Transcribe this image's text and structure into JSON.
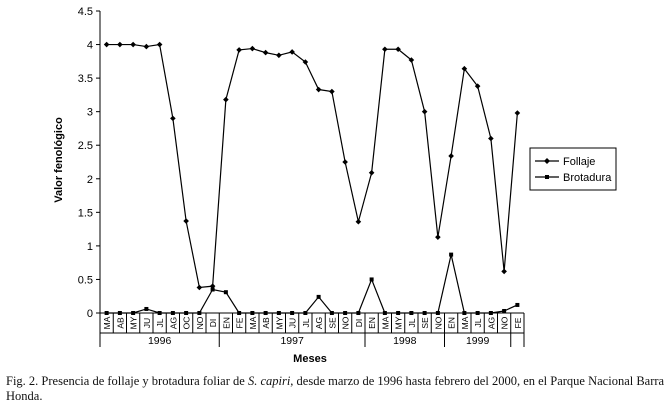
{
  "chart_data": {
    "type": "line",
    "ylabel": "Valor fenológico",
    "xlabel": "Meses",
    "ylim": [
      0,
      4.5
    ],
    "yticks": [
      "0",
      "0.5",
      "1",
      "1.5",
      "2",
      "2.5",
      "3",
      "3.5",
      "4",
      "4.5"
    ],
    "grid": false,
    "legend_position": "right",
    "categories": [
      "MA",
      "AB",
      "MY",
      "JU",
      "JL",
      "AG",
      "OC",
      "NO",
      "DI",
      "EN",
      "FE",
      "MA",
      "AB",
      "MY",
      "JU",
      "JL",
      "AG",
      "SE",
      "NO",
      "DI",
      "EN",
      "MA",
      "MY",
      "JL",
      "SE",
      "NO",
      "EN",
      "MA",
      "JL",
      "AG",
      "NO",
      "FE"
    ],
    "years": [
      {
        "label": "1996",
        "start": 0,
        "end": 8
      },
      {
        "label": "1997",
        "start": 9,
        "end": 19
      },
      {
        "label": "1998",
        "start": 20,
        "end": 25
      },
      {
        "label": "1999",
        "start": 26,
        "end": 30
      }
    ],
    "series": [
      {
        "name": "Follaje",
        "marker": "diamond",
        "values": [
          4.0,
          4.0,
          4.0,
          3.97,
          4.0,
          2.9,
          1.37,
          0.38,
          0.4,
          3.18,
          3.92,
          3.94,
          3.88,
          3.84,
          3.89,
          3.74,
          3.33,
          3.3,
          2.25,
          1.36,
          2.09,
          3.93,
          3.93,
          3.77,
          3.0,
          1.13,
          2.34,
          3.64,
          3.38,
          2.6,
          0.62,
          2.98
        ]
      },
      {
        "name": "Brotadura",
        "marker": "square",
        "values": [
          0,
          0,
          0,
          0.06,
          0,
          0,
          0,
          0,
          0.35,
          0.31,
          0,
          0,
          0,
          0,
          0,
          0,
          0.24,
          0,
          0,
          0,
          0.5,
          0,
          0,
          0,
          0,
          0,
          0.87,
          0,
          0,
          0,
          0.03,
          0.12
        ]
      }
    ]
  },
  "caption": {
    "prefix": "Fig. 2. Presencia de follaje y brotadura foliar de ",
    "species": "S. capiri",
    "suffix": ", desde marzo de 1996 hasta febrero del 2000, en el Parque Nacional Barra Honda."
  }
}
